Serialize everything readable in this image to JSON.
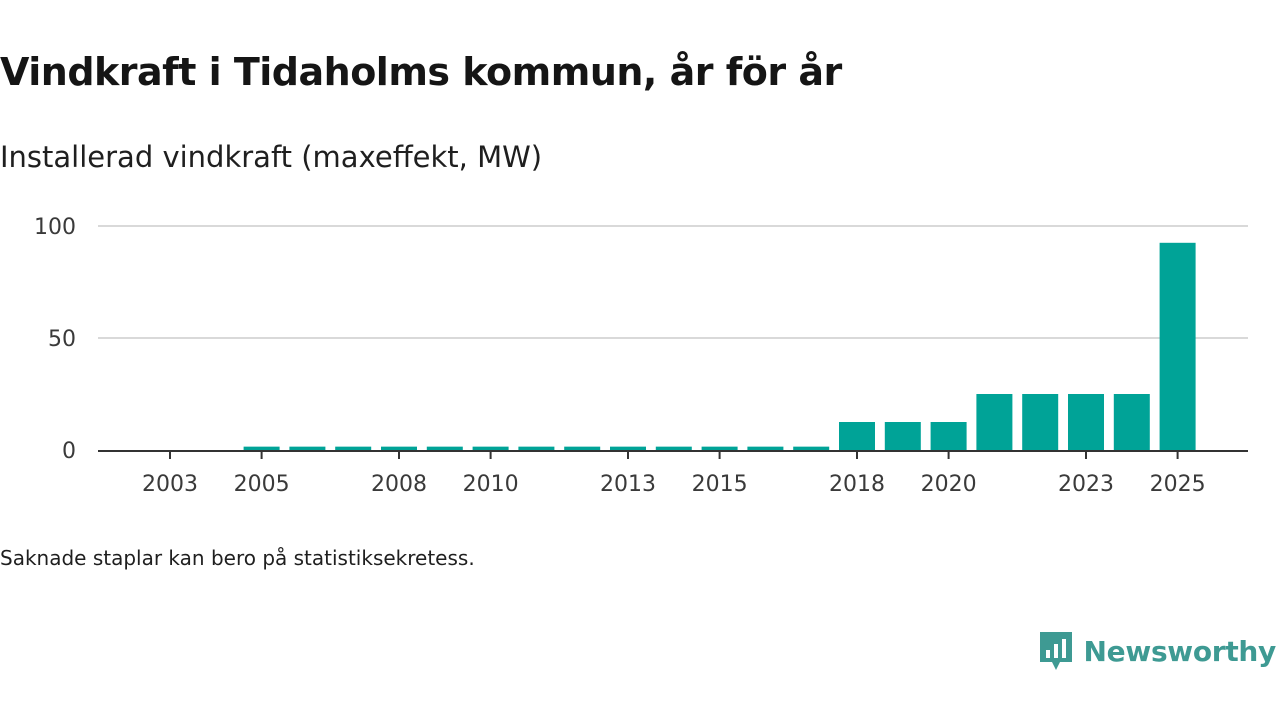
{
  "title": "Vindkraft i Tidaholms kommun, år för år",
  "subtitle": "Installerad vindkraft (maxeffekt, MW)",
  "footnote": "Saknade staplar kan bero på statistiksekretess.",
  "brand": "Newsworthy",
  "colors": {
    "bar": "#00a397",
    "grid": "#d9d9d9",
    "axis": "#333333",
    "brand": "#3e9a93"
  },
  "chart_data": {
    "type": "bar",
    "title": "Vindkraft i Tidaholms kommun, år för år",
    "ylabel": "Installerad vindkraft (maxeffekt, MW)",
    "xlabel": "",
    "ylim": [
      0,
      100
    ],
    "yticks": [
      0,
      50,
      100
    ],
    "grid": true,
    "categories": [
      "2003",
      "2004",
      "2005",
      "2006",
      "2007",
      "2008",
      "2009",
      "2010",
      "2011",
      "2012",
      "2013",
      "2014",
      "2015",
      "2016",
      "2017",
      "2018",
      "2019",
      "2020",
      "2021",
      "2022",
      "2023",
      "2024",
      "2025"
    ],
    "xtick_labels": [
      "2003",
      "2005",
      "2008",
      "2010",
      "2013",
      "2015",
      "2018",
      "2020",
      "2023",
      "2025"
    ],
    "values": [
      0,
      0,
      1.5,
      1.5,
      1.5,
      1.5,
      1.5,
      1.5,
      1.5,
      1.5,
      1.5,
      1.5,
      1.5,
      1.5,
      1.5,
      12.5,
      12.5,
      12.5,
      25,
      25,
      25,
      25,
      92.5
    ]
  }
}
